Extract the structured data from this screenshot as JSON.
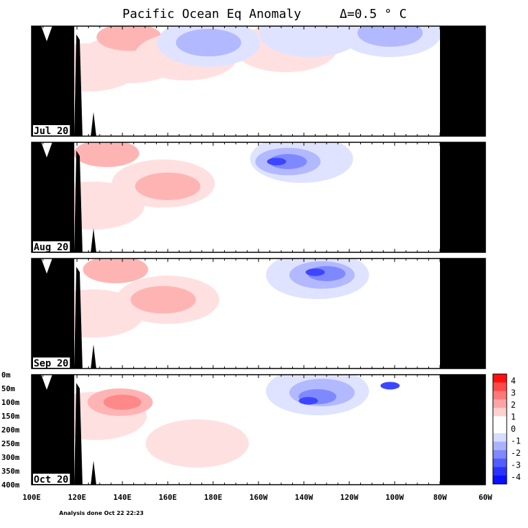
{
  "chart_data": {
    "type": "heatmap",
    "title": "Pacific Ocean Eq Anomaly",
    "interval_label": "Δ=0.5 ° C",
    "footnote": "Analysis done Oct 22 22:23",
    "x_ticks": [
      "100E",
      "120E",
      "140E",
      "160E",
      "180E",
      "160W",
      "140W",
      "120W",
      "100W",
      "80W",
      "60W"
    ],
    "y_ticks": [
      "0m",
      "50m",
      "100m",
      "150m",
      "200m",
      "250m",
      "300m",
      "350m",
      "400m"
    ],
    "colorbar": {
      "labels": [
        "4",
        "3",
        "2",
        "1",
        "0",
        "-1",
        "-2",
        "-3",
        "-4"
      ],
      "colors": [
        "#ff1010",
        "#ff4848",
        "#ff7878",
        "#ffa4a4",
        "#ffd0d0",
        "#ffffff",
        "#ffffff",
        "#d6dcff",
        "#aab2ff",
        "#7e88ff",
        "#525cff",
        "#2a32ff",
        "#0a10ff"
      ]
    },
    "panels": [
      {
        "label": "Jul 20",
        "warm": [
          {
            "level": 1,
            "lon": 125,
            "depth": 150
          },
          {
            "level": 1,
            "lon": 143,
            "depth": 120
          },
          {
            "level": 2,
            "lon": 143,
            "depth": 40
          },
          {
            "level": 1,
            "lon": 168,
            "depth": 110
          },
          {
            "level": 1,
            "lon": 212,
            "depth": 80
          }
        ],
        "cool": [
          {
            "level": 1,
            "lon": 178,
            "depth": 60
          },
          {
            "level": 2,
            "lon": 178,
            "depth": 60
          },
          {
            "level": 1,
            "lon": 223,
            "depth": 25
          },
          {
            "level": 1,
            "lon": 258,
            "depth": 25
          },
          {
            "level": 2,
            "lon": 258,
            "depth": 25
          }
        ]
      },
      {
        "label": "Aug 20",
        "warm": [
          {
            "level": 1,
            "lon": 127,
            "depth": 230
          },
          {
            "level": 2,
            "lon": 133,
            "depth": 40
          },
          {
            "level": 1,
            "lon": 158,
            "depth": 150
          },
          {
            "level": 2,
            "lon": 160,
            "depth": 160
          }
        ],
        "cool": [
          {
            "level": 1,
            "lon": 219,
            "depth": 60
          },
          {
            "level": 2,
            "lon": 213,
            "depth": 70
          },
          {
            "level": 3,
            "lon": 213,
            "depth": 70
          },
          {
            "level": 4,
            "lon": 208,
            "depth": 70
          }
        ]
      },
      {
        "label": "Sep 20",
        "warm": [
          {
            "level": 1,
            "lon": 127,
            "depth": 200
          },
          {
            "level": 2,
            "lon": 137,
            "depth": 40
          },
          {
            "level": 1,
            "lon": 160,
            "depth": 150
          },
          {
            "level": 2,
            "lon": 158,
            "depth": 150
          }
        ],
        "cool": [
          {
            "level": 1,
            "lon": 226,
            "depth": 60
          },
          {
            "level": 2,
            "lon": 228,
            "depth": 60
          },
          {
            "level": 3,
            "lon": 230,
            "depth": 55
          },
          {
            "level": 4,
            "lon": 225,
            "depth": 50
          }
        ]
      },
      {
        "label": "Oct 20",
        "warm": [
          {
            "level": 1,
            "lon": 128,
            "depth": 150
          },
          {
            "level": 2,
            "lon": 139,
            "depth": 100
          },
          {
            "level": 3,
            "lon": 140,
            "depth": 100
          },
          {
            "level": 1,
            "lon": 173,
            "depth": 250
          }
        ],
        "cool": [
          {
            "level": 1,
            "lon": 226,
            "depth": 60
          },
          {
            "level": 2,
            "lon": 228,
            "depth": 65
          },
          {
            "level": 3,
            "lon": 226,
            "depth": 80
          },
          {
            "level": 4,
            "lon": 222,
            "depth": 95
          },
          {
            "level": 4,
            "lon": 258,
            "depth": 40
          }
        ]
      }
    ]
  }
}
